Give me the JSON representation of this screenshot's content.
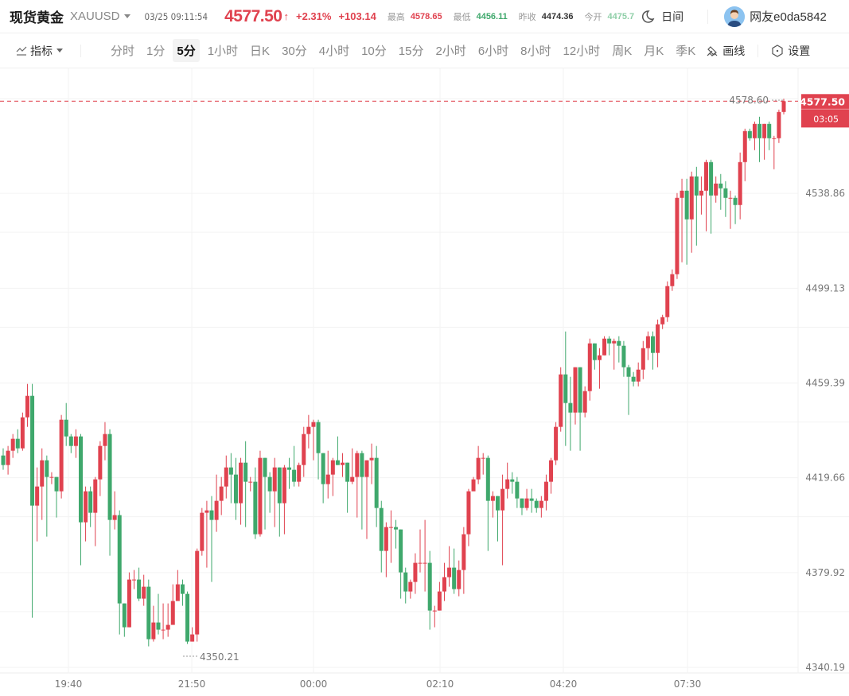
{
  "header": {
    "title": "现货黄金",
    "symbol": "XAUUSD",
    "datetime": "03/25 09:11:54",
    "price": "4577.50",
    "price_arrow": "↑",
    "change_pct": "+2.31%",
    "change_abs": "+103.14",
    "stats": [
      {
        "label": "最高",
        "value": "4578.65",
        "tone": "up"
      },
      {
        "label": "最低",
        "value": "4456.11",
        "tone": "down"
      },
      {
        "label": "昨收",
        "value": "4474.36",
        "tone": "neutral"
      },
      {
        "label": "今开",
        "value": "4475.7",
        "tone": "faded"
      }
    ],
    "theme_toggle": {
      "icon": "moon-icon",
      "label": "日间"
    },
    "user": {
      "avatar": "user-avatar",
      "name": "网友e0da5842"
    }
  },
  "toolbar": {
    "indicator_label": "指标",
    "periods": [
      "分时",
      "1分",
      "5分",
      "1小时",
      "日K",
      "30分",
      "4小时",
      "10分",
      "15分",
      "2小时",
      "6小时",
      "8小时",
      "12小时",
      "周K",
      "月K",
      "季K"
    ],
    "active_period": "5分",
    "draw_label": "画线",
    "settings_label": "设置"
  },
  "colors": {
    "up": "#e0424f",
    "down": "#3fa86c",
    "grid": "#f3f3f3",
    "axis_text": "#777777"
  },
  "chart_data": {
    "type": "candlestick",
    "title": "现货黄金 XAUUSD 5分",
    "y_ticks": [
      "4578.60",
      "4538.86",
      "4499.13",
      "4459.39",
      "4419.66",
      "4379.92",
      "4340.19"
    ],
    "ylim": [
      4340.19,
      4578.6
    ],
    "x_ticks": [
      "19:40",
      "21:50",
      "00:00",
      "02:10",
      "04:20",
      "07:30"
    ],
    "current_price": "4577.50",
    "countdown": "03:05",
    "high_marker": "4578.60",
    "low_marker": "4350.21",
    "grid": true,
    "candles": [
      [
        4429,
        4425,
        4432,
        4423
      ],
      [
        4425,
        4431,
        4433,
        4421
      ],
      [
        4431,
        4436,
        4438,
        4428
      ],
      [
        4436,
        4432,
        4440,
        4430
      ],
      [
        4432,
        4445,
        4447,
        4431
      ],
      [
        4445,
        4454,
        4459,
        4441
      ],
      [
        4454,
        4408,
        4459,
        4361
      ],
      [
        4408,
        4416,
        4424,
        4393
      ],
      [
        4416,
        4427,
        4432,
        4402
      ],
      [
        4427,
        4420,
        4429,
        4395
      ],
      [
        4420,
        4420,
        4422,
        4417
      ],
      [
        4420,
        4414,
        4420,
        4403
      ],
      [
        4414,
        4444,
        4446,
        4411
      ],
      [
        4444,
        4437,
        4451,
        4433
      ],
      [
        4437,
        4433,
        4438,
        4430
      ],
      [
        4433,
        4437,
        4440,
        4428
      ],
      [
        4437,
        4401,
        4438,
        4383
      ],
      [
        4401,
        4414,
        4416,
        4393
      ],
      [
        4414,
        4405,
        4416,
        4399
      ],
      [
        4405,
        4419,
        4420,
        4391
      ],
      [
        4419,
        4433,
        4435,
        4412
      ],
      [
        4433,
        4438,
        4443,
        4427
      ],
      [
        4438,
        4402,
        4440,
        4387
      ],
      [
        4402,
        4404,
        4414,
        4398
      ],
      [
        4404,
        4367,
        4406,
        4354
      ],
      [
        4367,
        4357,
        4367,
        4353
      ],
      [
        4357,
        4377,
        4380,
        4357
      ],
      [
        4377,
        4377,
        4381,
        4373
      ],
      [
        4377,
        4369,
        4382,
        4368
      ],
      [
        4369,
        4374,
        4379,
        4366
      ],
      [
        4374,
        4352,
        4377,
        4349
      ],
      [
        4352,
        4359,
        4366,
        4351
      ],
      [
        4359,
        4356,
        4371,
        4354
      ],
      [
        4356,
        4356,
        4367,
        4352
      ],
      [
        4356,
        4358,
        4367,
        4353
      ],
      [
        4358,
        4368,
        4375,
        4361
      ],
      [
        4368,
        4375,
        4381,
        4369
      ],
      [
        4375,
        4371,
        4377,
        4366
      ],
      [
        4371,
        4351,
        4372,
        4350
      ],
      [
        4351,
        4354,
        4357,
        4351
      ],
      [
        4354,
        4389,
        4390,
        4351
      ],
      [
        4389,
        4405,
        4407,
        4387
      ],
      [
        4405,
        4406,
        4410,
        4382
      ],
      [
        4406,
        4402,
        4412,
        4376
      ],
      [
        4402,
        4410,
        4421,
        4397
      ],
      [
        4410,
        4416,
        4420,
        4404
      ],
      [
        4416,
        4424,
        4429,
        4411
      ],
      [
        4424,
        4421,
        4430,
        4409
      ],
      [
        4421,
        4409,
        4428,
        4402
      ],
      [
        4409,
        4426,
        4428,
        4400
      ],
      [
        4426,
        4418,
        4435,
        4399
      ],
      [
        4418,
        4418,
        4420,
        4414
      ],
      [
        4418,
        4396,
        4424,
        4394
      ],
      [
        4396,
        4428,
        4431,
        4395
      ],
      [
        4428,
        4420,
        4428,
        4398
      ],
      [
        4420,
        4414,
        4422,
        4405
      ],
      [
        4414,
        4424,
        4428,
        4399
      ],
      [
        4424,
        4409,
        4424,
        4395
      ],
      [
        4409,
        4424,
        4425,
        4396
      ],
      [
        4424,
        4423,
        4428,
        4415
      ],
      [
        4423,
        4418,
        4433,
        4416
      ],
      [
        4418,
        4425,
        4426,
        4416
      ],
      [
        4425,
        4438,
        4441,
        4420
      ],
      [
        4438,
        4441,
        4446,
        4432
      ],
      [
        4441,
        4443,
        4444,
        4427
      ],
      [
        4443,
        4430,
        4444,
        4419
      ],
      [
        4430,
        4417,
        4430,
        4409
      ],
      [
        4417,
        4421,
        4431,
        4411
      ],
      [
        4421,
        4427,
        4428,
        4412
      ],
      [
        4427,
        4425,
        4437,
        4425
      ],
      [
        4425,
        4426,
        4430,
        4420
      ],
      [
        4426,
        4418,
        4426,
        4405
      ],
      [
        4418,
        4420,
        4432,
        4417
      ],
      [
        4420,
        4430,
        4431,
        4403
      ],
      [
        4430,
        4420,
        4431,
        4398
      ],
      [
        4420,
        4427,
        4427,
        4394
      ],
      [
        4427,
        4428,
        4434,
        4417
      ],
      [
        4428,
        4407,
        4433,
        4399
      ],
      [
        4407,
        4389,
        4410,
        4380
      ],
      [
        4389,
        4399,
        4401,
        4378
      ],
      [
        4399,
        4399,
        4406,
        4384
      ],
      [
        4399,
        4398,
        4402,
        4390
      ],
      [
        4398,
        4380,
        4398,
        4369
      ],
      [
        4380,
        4372,
        4382,
        4367
      ],
      [
        4372,
        4376,
        4377,
        4369
      ],
      [
        4376,
        4384,
        4388,
        4371
      ],
      [
        4384,
        4384,
        4398,
        4380
      ],
      [
        4384,
        4384,
        4402,
        4372
      ],
      [
        4384,
        4364,
        4389,
        4356
      ],
      [
        4364,
        4364,
        4366,
        4357
      ],
      [
        4364,
        4372,
        4376,
        4364
      ],
      [
        4372,
        4378,
        4384,
        4368
      ],
      [
        4378,
        4382,
        4391,
        4374
      ],
      [
        4382,
        4373,
        4390,
        4371
      ],
      [
        4373,
        4381,
        4385,
        4370
      ],
      [
        4381,
        4396,
        4399,
        4371
      ],
      [
        4396,
        4414,
        4415,
        4391
      ],
      [
        4414,
        4419,
        4420,
        4415
      ],
      [
        4419,
        4428,
        4433,
        4417
      ],
      [
        4428,
        4428,
        4430,
        4421
      ],
      [
        4428,
        4410,
        4429,
        4389
      ],
      [
        4410,
        4412,
        4414,
        4403
      ],
      [
        4412,
        4406,
        4412,
        4393
      ],
      [
        4406,
        4415,
        4421,
        4383
      ],
      [
        4415,
        4419,
        4426,
        4411
      ],
      [
        4419,
        4418,
        4422,
        4413
      ],
      [
        4418,
        4411,
        4420,
        4407
      ],
      [
        4411,
        4407,
        4411,
        4404
      ],
      [
        4407,
        4411,
        4415,
        4406
      ],
      [
        4411,
        4410,
        4415,
        4405
      ],
      [
        4410,
        4407,
        4411,
        4405
      ],
      [
        4407,
        4410,
        4412,
        4403
      ],
      [
        4410,
        4418,
        4421,
        4406
      ],
      [
        4418,
        4427,
        4428,
        4413
      ],
      [
        4427,
        4441,
        4443,
        4425
      ],
      [
        4441,
        4463,
        4466,
        4439
      ],
      [
        4463,
        4451,
        4481,
        4433
      ],
      [
        4451,
        4447,
        4462,
        4431
      ],
      [
        4447,
        4466,
        4466,
        4442
      ],
      [
        4466,
        4447,
        4466,
        4431
      ],
      [
        4447,
        4456,
        4458,
        4445
      ],
      [
        4456,
        4476,
        4478,
        4452
      ],
      [
        4476,
        4469,
        4476,
        4465
      ],
      [
        4469,
        4471,
        4474,
        4457
      ],
      [
        4471,
        4478,
        4479,
        4471
      ],
      [
        4478,
        4476,
        4479,
        4471
      ],
      [
        4476,
        4477,
        4478,
        4465
      ],
      [
        4477,
        4475,
        4479,
        4468
      ],
      [
        4475,
        4466,
        4477,
        4462
      ],
      [
        4466,
        4462,
        4467,
        4446
      ],
      [
        4462,
        4460,
        4464,
        4458
      ],
      [
        4460,
        4465,
        4468,
        4458
      ],
      [
        4465,
        4474,
        4477,
        4461
      ],
      [
        4474,
        4479,
        4481,
        4469
      ],
      [
        4479,
        4472,
        4481,
        4465
      ],
      [
        4472,
        4484,
        4486,
        4466
      ],
      [
        4484,
        4487,
        4488,
        4482
      ],
      [
        4487,
        4500,
        4502,
        4485
      ],
      [
        4500,
        4505,
        4507,
        4498
      ],
      [
        4505,
        4537,
        4539,
        4503
      ],
      [
        4537,
        4540,
        4545,
        4510
      ],
      [
        4540,
        4528,
        4545,
        4509
      ],
      [
        4528,
        4546,
        4548,
        4514
      ],
      [
        4546,
        4538,
        4550,
        4517
      ],
      [
        4538,
        4540,
        4546,
        4530
      ],
      [
        4540,
        4552,
        4553,
        4523
      ],
      [
        4552,
        4538,
        4553,
        4522
      ],
      [
        4538,
        4543,
        4546,
        4535
      ],
      [
        4543,
        4541,
        4547,
        4532
      ],
      [
        4541,
        4537,
        4544,
        4529
      ],
      [
        4537,
        4537,
        4540,
        4524
      ],
      [
        4537,
        4534,
        4538,
        4526
      ],
      [
        4534,
        4552,
        4556,
        4528
      ],
      [
        4552,
        4565,
        4566,
        4544
      ],
      [
        4565,
        4562,
        4566,
        4561
      ],
      [
        4562,
        4568,
        4569,
        4557
      ],
      [
        4568,
        4562,
        4571,
        4552
      ],
      [
        4562,
        4568,
        4568,
        4553
      ],
      [
        4568,
        4562,
        4569,
        4557
      ],
      [
        4562,
        4562,
        4563,
        4549
      ],
      [
        4562,
        4573,
        4574,
        4560
      ],
      [
        4573,
        4577.5,
        4578.6,
        4572
      ]
    ]
  }
}
